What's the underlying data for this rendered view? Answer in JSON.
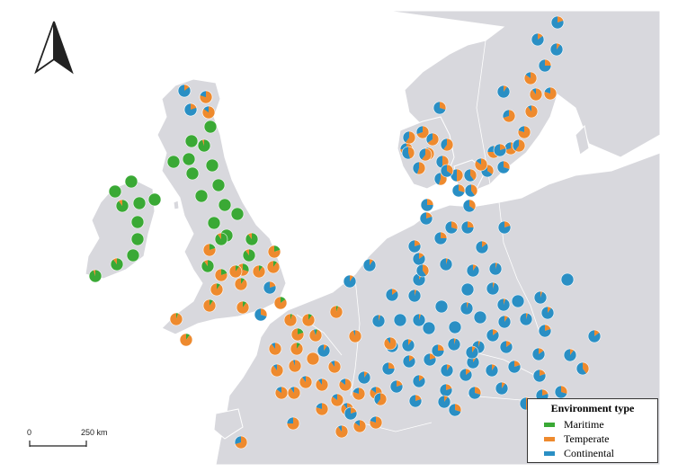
{
  "scale_bar": {
    "start_label": "0",
    "end_label": "250 km"
  },
  "legend": {
    "title": "Environment type",
    "items": [
      {
        "label": "Maritime",
        "color": "#3aa935"
      },
      {
        "label": "Temperate",
        "color": "#ee8a2e"
      },
      {
        "label": "Continental",
        "color": "#2a8fc4"
      }
    ]
  },
  "colors": {
    "sea": "#ffffff",
    "land": "#d8d8dd",
    "border": "#ffffff",
    "maritime": "#3aa935",
    "temperate": "#ee8a2e",
    "continental": "#2a8fc4"
  },
  "north_arrow": {
    "icon": "north-arrow-icon"
  },
  "site_shares_order": [
    "maritime",
    "temperate",
    "continental"
  ],
  "sites": [
    [
      1,
      0,
      0
    ],
    [
      0.95,
      0.05,
      0
    ],
    [
      1,
      0,
      0
    ],
    [
      0.95,
      0.05,
      0
    ],
    [
      1,
      0,
      0
    ],
    [
      1,
      0,
      0
    ],
    [
      0.95,
      0.05,
      0
    ],
    [
      1,
      0,
      0
    ],
    [
      1,
      0,
      0
    ],
    [
      1,
      0,
      0
    ],
    [
      1,
      0,
      0
    ],
    [
      1,
      0,
      0
    ],
    [
      1,
      0,
      0
    ],
    [
      1,
      0,
      0
    ],
    [
      1,
      0,
      0
    ],
    [
      1,
      0,
      0
    ],
    [
      0.9,
      0.1,
      0
    ],
    [
      1,
      0,
      0
    ],
    [
      1,
      0,
      0
    ],
    [
      1,
      0,
      0
    ],
    [
      1,
      0,
      0
    ],
    [
      1,
      0,
      0
    ],
    [
      1,
      0,
      0
    ],
    [
      1,
      0,
      0
    ],
    [
      0.9,
      0.1,
      0
    ],
    [
      1,
      0,
      0
    ],
    [
      0.95,
      0.05,
      0
    ],
    [
      0.9,
      0.1,
      0
    ],
    [
      0.9,
      0.1,
      0
    ],
    [
      0.9,
      0.1,
      0
    ],
    [
      0.2,
      0.8,
      0
    ],
    [
      0.9,
      0.1,
      0
    ],
    [
      0.2,
      0.8,
      0
    ],
    [
      0.3,
      0.7,
      0
    ],
    [
      0.1,
      0.9,
      0
    ],
    [
      0.2,
      0.8,
      0
    ],
    [
      0.1,
      0.9,
      0
    ],
    [
      0.1,
      0.9,
      0
    ],
    [
      0.1,
      0.9,
      0
    ],
    [
      0.1,
      0.9,
      0
    ],
    [
      0.1,
      0.9,
      0
    ],
    [
      0.15,
      0.85,
      0
    ],
    [
      0.1,
      0.9,
      0
    ],
    [
      0.05,
      0.95,
      0
    ],
    [
      0.1,
      0.9,
      0
    ],
    [
      0.05,
      0.95,
      0
    ],
    [
      0.1,
      0.9,
      0
    ],
    [
      0.05,
      0.95,
      0
    ],
    [
      0.2,
      0.8,
      0
    ],
    [
      0.05,
      0.9,
      0.05
    ],
    [
      0.1,
      0.9,
      0
    ],
    [
      0,
      1,
      0
    ],
    [
      0,
      0.9,
      0.1
    ],
    [
      0,
      0.95,
      0.05
    ],
    [
      0,
      0.9,
      0.1
    ],
    [
      0,
      0.95,
      0.05
    ],
    [
      0,
      0.9,
      0.1
    ],
    [
      0,
      0.85,
      0.15
    ],
    [
      0,
      0.9,
      0.1
    ],
    [
      0,
      0.85,
      0.15
    ],
    [
      0,
      0.9,
      0.1
    ],
    [
      0,
      0.8,
      0.2
    ],
    [
      0,
      0.85,
      0.15
    ],
    [
      0,
      0.8,
      0.2
    ],
    [
      0,
      0.9,
      0.1
    ],
    [
      0,
      0.85,
      0.15
    ],
    [
      0,
      0.75,
      0.25
    ],
    [
      0,
      0.7,
      0.3
    ],
    [
      0,
      0.75,
      0.25
    ],
    [
      0,
      0.7,
      0.3
    ],
    [
      0,
      0.6,
      0.4
    ],
    [
      0,
      0.65,
      0.35
    ],
    [
      0,
      0.6,
      0.4
    ],
    [
      0,
      0.55,
      0.45
    ],
    [
      0,
      0.7,
      0.3
    ],
    [
      0,
      0.5,
      0.5
    ],
    [
      0,
      0.55,
      0.45
    ],
    [
      0,
      0.45,
      0.55
    ],
    [
      0,
      0.6,
      0.4
    ],
    [
      0,
      0.5,
      0.5
    ],
    [
      0,
      0.4,
      0.6
    ],
    [
      0,
      0.35,
      0.65
    ],
    [
      0,
      0.3,
      0.7
    ],
    [
      0,
      0.4,
      0.6
    ],
    [
      0,
      0.3,
      0.7
    ],
    [
      0,
      0.35,
      0.65
    ],
    [
      0,
      0.25,
      0.75
    ],
    [
      0,
      0.3,
      0.7
    ],
    [
      0,
      0.2,
      0.8
    ],
    [
      0,
      0.25,
      0.75
    ],
    [
      0,
      0.2,
      0.8
    ],
    [
      0,
      0.15,
      0.85
    ],
    [
      0,
      0.2,
      0.8
    ],
    [
      0,
      0.15,
      0.85
    ],
    [
      0,
      0.1,
      0.9
    ],
    [
      0,
      0.15,
      0.85
    ],
    [
      0,
      0.1,
      0.9
    ],
    [
      0,
      0.05,
      0.95
    ],
    [
      0,
      0.1,
      0.9
    ],
    [
      0,
      0.05,
      0.95
    ],
    [
      0,
      0.1,
      0.9
    ],
    [
      0,
      0.05,
      0.95
    ],
    [
      0,
      0,
      1
    ],
    [
      0,
      0.05,
      0.95
    ],
    [
      0,
      0,
      1
    ],
    [
      0,
      0.05,
      0.95
    ],
    [
      0,
      0,
      1
    ],
    [
      0,
      0.05,
      0.95
    ],
    [
      0,
      0,
      1
    ],
    [
      0,
      0.05,
      0.95
    ],
    [
      0,
      0,
      1
    ],
    [
      0,
      0.1,
      0.9
    ],
    [
      0,
      0,
      1
    ],
    [
      0,
      0.05,
      0.95
    ],
    [
      0,
      0,
      1
    ],
    [
      0,
      0.05,
      0.95
    ],
    [
      0,
      0,
      1
    ],
    [
      0,
      0.1,
      0.9
    ],
    [
      0,
      0.05,
      0.95
    ],
    [
      0,
      0.1,
      0.9
    ],
    [
      0,
      0.05,
      0.95
    ],
    [
      0,
      0.15,
      0.85
    ],
    [
      0,
      0.1,
      0.9
    ],
    [
      0,
      0.05,
      0.95
    ],
    [
      0,
      0.2,
      0.8
    ],
    [
      0,
      0.1,
      0.9
    ],
    [
      0,
      0.15,
      0.85
    ],
    [
      0,
      0.1,
      0.9
    ],
    [
      0,
      0.2,
      0.8
    ],
    [
      0,
      0.15,
      0.85
    ],
    [
      0,
      0.1,
      0.9
    ],
    [
      0,
      0.2,
      0.8
    ],
    [
      0,
      0.15,
      0.85
    ],
    [
      0,
      0.1,
      0.9
    ],
    [
      0,
      0.25,
      0.75
    ],
    [
      0,
      0.15,
      0.85
    ],
    [
      0,
      0.2,
      0.8
    ],
    [
      0,
      0.3,
      0.7
    ],
    [
      0,
      0.1,
      0.9
    ],
    [
      0,
      0.2,
      0.8
    ],
    [
      0,
      0.15,
      0.85
    ],
    [
      0,
      0.25,
      0.75
    ],
    [
      0,
      0.1,
      0.9
    ],
    [
      0,
      0.2,
      0.8
    ],
    [
      0,
      0.7,
      0.3
    ],
    [
      0,
      0.8,
      0.2
    ],
    [
      0,
      0.6,
      0.4
    ],
    [
      0,
      0.75,
      0.25
    ],
    [
      0,
      0.85,
      0.15
    ],
    [
      0,
      0.9,
      0.1
    ],
    [
      0,
      0.8,
      0.2
    ],
    [
      0,
      0.7,
      0.3
    ],
    [
      0,
      0.9,
      0.1
    ],
    [
      0,
      0.85,
      0.15
    ],
    [
      0,
      0.1,
      0.9
    ],
    [
      0,
      0.15,
      0.85
    ],
    [
      0,
      0.2,
      0.8
    ],
    [
      0,
      0.1,
      0.9
    ],
    [
      0,
      0.25,
      0.75
    ],
    [
      0,
      0.3,
      0.7
    ],
    [
      0,
      0.2,
      0.8
    ],
    [
      0,
      0.35,
      0.65
    ],
    [
      0,
      0.25,
      0.75
    ],
    [
      0,
      0.4,
      0.6
    ],
    [
      0,
      0.9,
      0.1
    ],
    [
      0,
      0.1,
      0.9
    ],
    [
      0,
      0.15,
      0.85
    ],
    [
      0,
      0.2,
      0.8
    ],
    [
      0,
      0.6,
      0.4
    ],
    [
      0,
      0.5,
      0.5
    ],
    [
      0,
      0.3,
      0.7
    ],
    [
      0,
      0.4,
      0.6
    ],
    [
      0,
      0.1,
      0.9
    ],
    [
      0,
      0.2,
      0.8
    ],
    [
      0,
      0.2,
      0.8
    ],
    [
      0,
      0.3,
      0.7
    ],
    [
      0,
      0.9,
      0.1
    ],
    [
      0,
      0.8,
      0.2
    ],
    [
      0,
      0.1,
      0.9
    ],
    [
      0,
      0.2,
      0.8
    ],
    [
      0,
      0.85,
      0.15
    ],
    [
      0,
      0.3,
      0.7
    ],
    [
      0,
      0.9,
      0.1
    ],
    [
      0,
      0.15,
      0.85
    ],
    [
      0,
      0.8,
      0.2
    ],
    [
      0,
      0.2,
      0.8
    ],
    [
      0,
      0.85,
      0.15
    ]
  ]
}
